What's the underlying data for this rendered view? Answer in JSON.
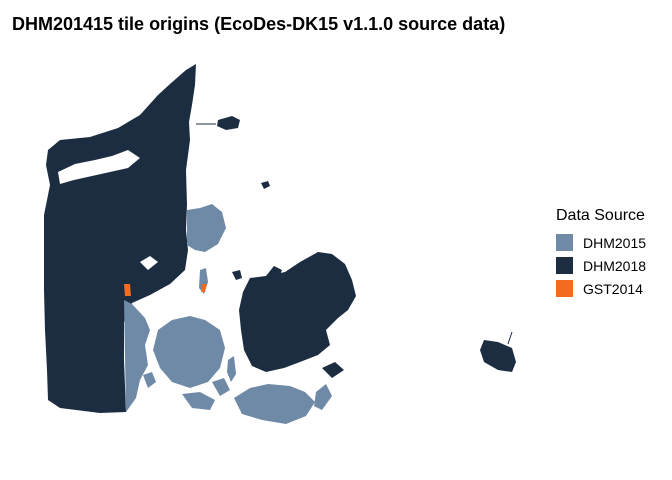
{
  "title": "DHM201415 tile origins (EcoDes-DK15 v1.1.0 source data)",
  "legend": {
    "title": "Data Source",
    "items": [
      {
        "label": "DHM2015",
        "color": "#6f8aa6"
      },
      {
        "label": "DHM2018",
        "color": "#1c2d42"
      },
      {
        "label": "GST2014",
        "color": "#f26b21"
      }
    ]
  },
  "colors": {
    "background": "#ffffff",
    "dhm2015": "#6f8aa6",
    "dhm2018": "#1c2d42",
    "gst2014": "#f26b21"
  }
}
